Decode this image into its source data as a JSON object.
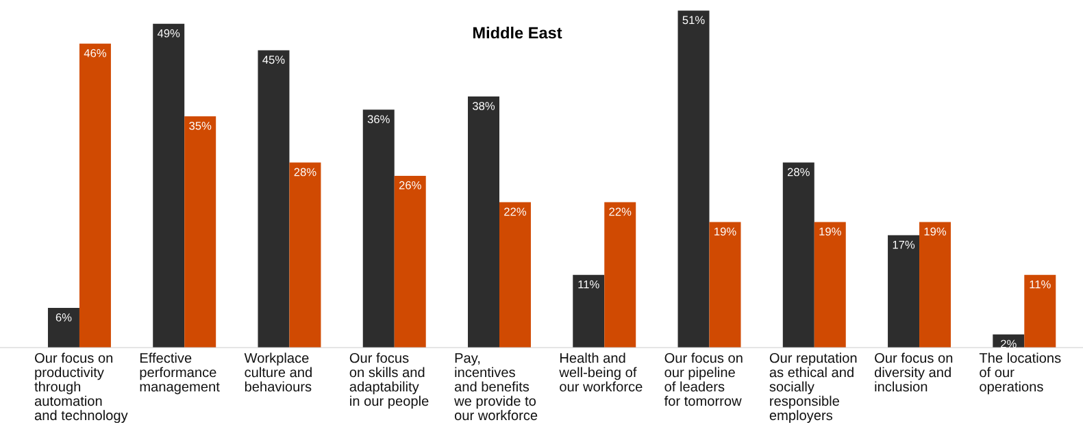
{
  "chart_data": {
    "type": "bar",
    "title": "Middle East",
    "categories": [
      "Our focus on\nproductivity\nthrough\nautomation\nand technology",
      "Effective\nperformance\nmanagement",
      "Workplace\nculture and\nbehaviours",
      "Our focus\non skills and\nadaptability\nin our people",
      "Pay,\nincentives\nand benefits\nwe provide to\nour workforce",
      "Health and\nwell-being of\nour workforce",
      "Our focus on\nour pipeline\nof leaders\nfor tomorrow",
      "Our reputation\nas ethical and\nsocially\nresponsible\nemployers",
      "Our focus on\ndiversity and\ninclusion",
      "The locations\nof our\noperations"
    ],
    "series": [
      {
        "color": "#2d2d2d",
        "values": [
          6,
          49,
          45,
          36,
          38,
          11,
          51,
          28,
          17,
          2
        ],
        "value_labels": [
          "6%",
          "49%",
          "45%",
          "36%",
          "38%",
          "11%",
          "51%",
          "28%",
          "17%",
          "2%"
        ]
      },
      {
        "color": "#d04a02",
        "values": [
          46,
          35,
          28,
          26,
          22,
          22,
          19,
          19,
          19,
          11
        ],
        "value_labels": [
          "46%",
          "35%",
          "28%",
          "26%",
          "22%",
          "22%",
          "19%",
          "19%",
          "19%",
          "11%"
        ]
      }
    ]
  }
}
